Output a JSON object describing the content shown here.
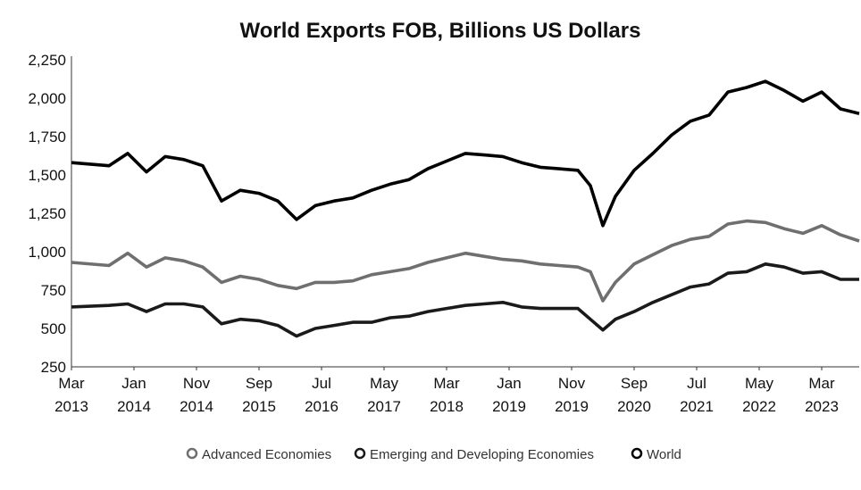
{
  "chart_data": {
    "type": "line",
    "title": "World Exports FOB, Billions US Dollars",
    "xlabel": "",
    "ylabel": "",
    "ylim": [
      250,
      2250
    ],
    "yticks": [
      "2,250",
      "2,000",
      "1,750",
      "1,500",
      "1,250",
      "1,000",
      "750",
      "500",
      "250"
    ],
    "yticks_values": [
      2250,
      2000,
      1750,
      1500,
      1250,
      1000,
      750,
      500,
      250
    ],
    "xticks": [
      {
        "month": "Mar",
        "year": "2013"
      },
      {
        "month": "Jan",
        "year": "2014"
      },
      {
        "month": "Nov",
        "year": "2014"
      },
      {
        "month": "Sep",
        "year": "2015"
      },
      {
        "month": "Jul",
        "year": "2016"
      },
      {
        "month": "May",
        "year": "2017"
      },
      {
        "month": "Mar",
        "year": "2018"
      },
      {
        "month": "Jan",
        "year": "2019"
      },
      {
        "month": "Nov",
        "year": "2019"
      },
      {
        "month": "Sep",
        "year": "2020"
      },
      {
        "month": "Jul",
        "year": "2021"
      },
      {
        "month": "May",
        "year": "2022"
      },
      {
        "month": "Mar",
        "year": "2023"
      }
    ],
    "x_range": [
      "2013-03",
      "2023-09"
    ],
    "legend_position": "bottom",
    "grid": false,
    "series": [
      {
        "name": "Advanced Economies",
        "color": "#6f6f6f",
        "points": [
          [
            "2013-03",
            930
          ],
          [
            "2013-09",
            910
          ],
          [
            "2013-12",
            990
          ],
          [
            "2014-03",
            900
          ],
          [
            "2014-06",
            960
          ],
          [
            "2014-09",
            940
          ],
          [
            "2014-12",
            900
          ],
          [
            "2015-03",
            800
          ],
          [
            "2015-06",
            840
          ],
          [
            "2015-09",
            820
          ],
          [
            "2015-12",
            780
          ],
          [
            "2016-03",
            760
          ],
          [
            "2016-06",
            800
          ],
          [
            "2016-09",
            800
          ],
          [
            "2016-12",
            810
          ],
          [
            "2017-03",
            850
          ],
          [
            "2017-06",
            870
          ],
          [
            "2017-09",
            890
          ],
          [
            "2017-12",
            930
          ],
          [
            "2018-03",
            960
          ],
          [
            "2018-06",
            990
          ],
          [
            "2018-09",
            970
          ],
          [
            "2018-12",
            950
          ],
          [
            "2019-03",
            940
          ],
          [
            "2019-06",
            920
          ],
          [
            "2019-09",
            910
          ],
          [
            "2019-12",
            900
          ],
          [
            "2020-02",
            870
          ],
          [
            "2020-04",
            680
          ],
          [
            "2020-06",
            800
          ],
          [
            "2020-09",
            920
          ],
          [
            "2020-12",
            980
          ],
          [
            "2021-03",
            1040
          ],
          [
            "2021-06",
            1080
          ],
          [
            "2021-09",
            1100
          ],
          [
            "2021-12",
            1180
          ],
          [
            "2022-03",
            1200
          ],
          [
            "2022-06",
            1190
          ],
          [
            "2022-09",
            1150
          ],
          [
            "2022-12",
            1120
          ],
          [
            "2023-03",
            1170
          ],
          [
            "2023-06",
            1110
          ],
          [
            "2023-09",
            1070
          ]
        ]
      },
      {
        "name": "Emerging and Developing Economies",
        "color": "#1a1a1a",
        "points": [
          [
            "2013-03",
            640
          ],
          [
            "2013-09",
            650
          ],
          [
            "2013-12",
            660
          ],
          [
            "2014-03",
            610
          ],
          [
            "2014-06",
            660
          ],
          [
            "2014-09",
            660
          ],
          [
            "2014-12",
            640
          ],
          [
            "2015-03",
            530
          ],
          [
            "2015-06",
            560
          ],
          [
            "2015-09",
            550
          ],
          [
            "2015-12",
            520
          ],
          [
            "2016-03",
            450
          ],
          [
            "2016-06",
            500
          ],
          [
            "2016-09",
            520
          ],
          [
            "2016-12",
            540
          ],
          [
            "2017-03",
            540
          ],
          [
            "2017-06",
            570
          ],
          [
            "2017-09",
            580
          ],
          [
            "2017-12",
            610
          ],
          [
            "2018-03",
            630
          ],
          [
            "2018-06",
            650
          ],
          [
            "2018-09",
            660
          ],
          [
            "2018-12",
            670
          ],
          [
            "2019-03",
            640
          ],
          [
            "2019-06",
            630
          ],
          [
            "2019-09",
            630
          ],
          [
            "2019-12",
            630
          ],
          [
            "2020-02",
            560
          ],
          [
            "2020-04",
            490
          ],
          [
            "2020-06",
            560
          ],
          [
            "2020-09",
            610
          ],
          [
            "2020-12",
            670
          ],
          [
            "2021-03",
            720
          ],
          [
            "2021-06",
            770
          ],
          [
            "2021-09",
            790
          ],
          [
            "2021-12",
            860
          ],
          [
            "2022-03",
            870
          ],
          [
            "2022-06",
            920
          ],
          [
            "2022-09",
            900
          ],
          [
            "2022-12",
            860
          ],
          [
            "2023-03",
            870
          ],
          [
            "2023-06",
            820
          ],
          [
            "2023-09",
            820
          ]
        ]
      },
      {
        "name": "World",
        "color": "#000000",
        "points": [
          [
            "2013-03",
            1580
          ],
          [
            "2013-09",
            1560
          ],
          [
            "2013-12",
            1640
          ],
          [
            "2014-03",
            1520
          ],
          [
            "2014-06",
            1620
          ],
          [
            "2014-09",
            1600
          ],
          [
            "2014-12",
            1560
          ],
          [
            "2015-03",
            1330
          ],
          [
            "2015-06",
            1400
          ],
          [
            "2015-09",
            1380
          ],
          [
            "2015-12",
            1330
          ],
          [
            "2016-03",
            1210
          ],
          [
            "2016-06",
            1300
          ],
          [
            "2016-09",
            1330
          ],
          [
            "2016-12",
            1350
          ],
          [
            "2017-03",
            1400
          ],
          [
            "2017-06",
            1440
          ],
          [
            "2017-09",
            1470
          ],
          [
            "2017-12",
            1540
          ],
          [
            "2018-03",
            1590
          ],
          [
            "2018-06",
            1640
          ],
          [
            "2018-09",
            1630
          ],
          [
            "2018-12",
            1620
          ],
          [
            "2019-03",
            1580
          ],
          [
            "2019-06",
            1550
          ],
          [
            "2019-09",
            1540
          ],
          [
            "2019-12",
            1530
          ],
          [
            "2020-02",
            1430
          ],
          [
            "2020-04",
            1170
          ],
          [
            "2020-06",
            1360
          ],
          [
            "2020-09",
            1530
          ],
          [
            "2020-12",
            1640
          ],
          [
            "2021-03",
            1760
          ],
          [
            "2021-06",
            1850
          ],
          [
            "2021-09",
            1890
          ],
          [
            "2021-12",
            2040
          ],
          [
            "2022-03",
            2070
          ],
          [
            "2022-06",
            2110
          ],
          [
            "2022-09",
            2050
          ],
          [
            "2022-12",
            1980
          ],
          [
            "2023-03",
            2040
          ],
          [
            "2023-06",
            1930
          ],
          [
            "2023-09",
            1900
          ]
        ]
      }
    ]
  }
}
